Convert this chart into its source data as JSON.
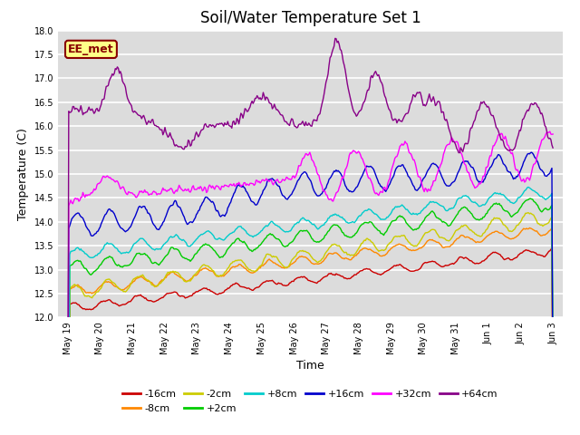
{
  "title": "Soil/Water Temperature Set 1",
  "xlabel": "Time",
  "ylabel": "Temperature (C)",
  "ylim": [
    12.0,
    18.0
  ],
  "yticks": [
    12.0,
    12.5,
    13.0,
    13.5,
    14.0,
    14.5,
    15.0,
    15.5,
    16.0,
    16.5,
    17.0,
    17.5,
    18.0
  ],
  "plot_bg_color": "#dcdcdc",
  "fig_bg_color": "#ffffff",
  "grid_color": "#ffffff",
  "series": [
    {
      "label": "-16cm",
      "color": "#cc0000"
    },
    {
      "label": "-8cm",
      "color": "#ff8800"
    },
    {
      "label": "-2cm",
      "color": "#cccc00"
    },
    {
      "label": "+2cm",
      "color": "#00cc00"
    },
    {
      "label": "+8cm",
      "color": "#00cccc"
    },
    {
      "label": "+16cm",
      "color": "#0000cc"
    },
    {
      "label": "+32cm",
      "color": "#ff00ff"
    },
    {
      "label": "+64cm",
      "color": "#880088"
    }
  ],
  "legend_label": "EE_met",
  "legend_label_bg": "#ffff88",
  "legend_label_border": "#880000",
  "tick_labels": [
    "May 19",
    "May 20",
    "May 21",
    "May 22",
    "May 23",
    "May 24",
    "May 25",
    "May 26",
    "May 27",
    "May 28",
    "May 29",
    "May 30",
    "May 31",
    "Jun 1",
    "Jun 2",
    "Jun 3"
  ],
  "title_fontsize": 12
}
